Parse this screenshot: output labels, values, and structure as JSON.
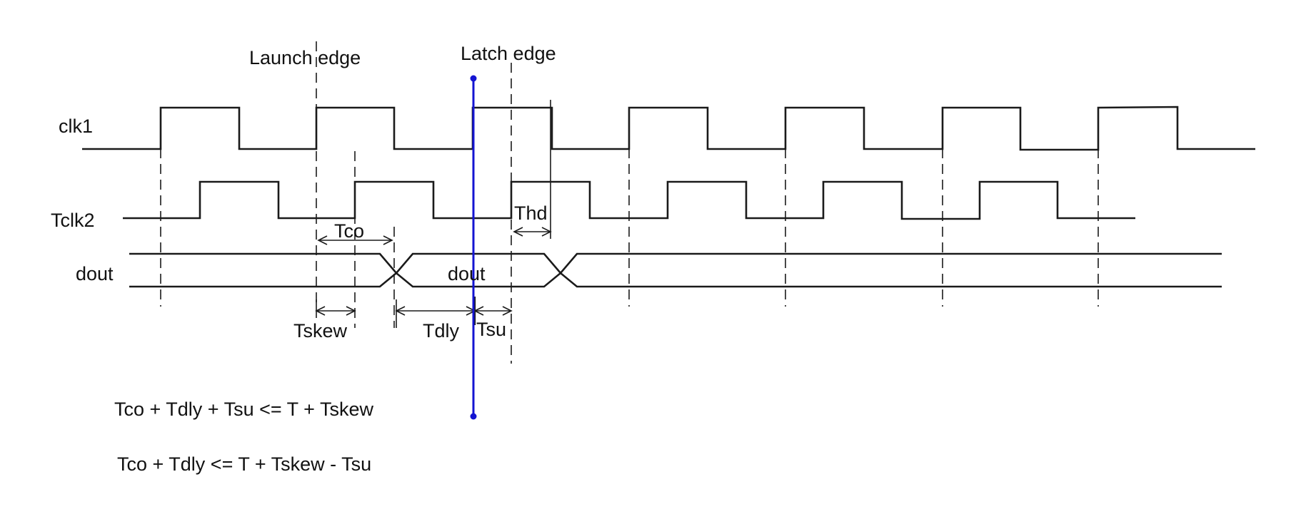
{
  "diagram": {
    "signals": {
      "clk1": "clk1",
      "tclk2": "Tclk2",
      "dout": "dout",
      "dout_inner": "dout"
    },
    "edges": {
      "launch": "Launch edge",
      "latch": "Latch edge"
    },
    "annotations": {
      "tco": "Tco",
      "thd": "Thd",
      "tskew": "Tskew",
      "tdly": "Tdly",
      "tsu": "Tsu"
    },
    "equations": [
      "Tco + Tdly + Tsu <= T + Tskew",
      "Tco + Tdly <= T + Tskew - Tsu"
    ],
    "colors": {
      "ink": "#1a1a1a",
      "cursor": "#1414d2"
    }
  }
}
